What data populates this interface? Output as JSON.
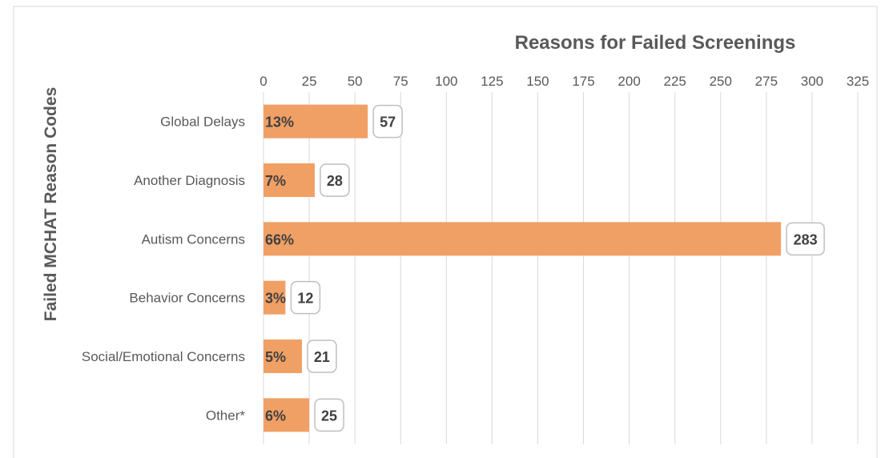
{
  "chart_data": {
    "type": "bar",
    "orientation": "horizontal",
    "title": "Reasons for Failed Screenings",
    "ylabel": "Failed MCHAT Reason Codes",
    "xlabel": "",
    "xlim": [
      0,
      325
    ],
    "x_ticks": [
      0,
      25,
      50,
      75,
      100,
      125,
      150,
      175,
      200,
      225,
      250,
      275,
      300,
      325
    ],
    "x_axis_position": "top",
    "grid": "vertical",
    "categories": [
      "Global Delays",
      "Another Diagnosis",
      "Autism Concerns",
      "Behavior Concerns",
      "Social/Emotional Concerns",
      "Other*"
    ],
    "values": [
      57,
      28,
      283,
      12,
      21,
      25
    ],
    "percent_labels": [
      "13%",
      "7%",
      "66%",
      "3%",
      "5%",
      "6%"
    ],
    "value_labels": [
      "57",
      "28",
      "283",
      "12",
      "21",
      "25"
    ],
    "bar_color": "#f0a064",
    "legend": "none"
  }
}
